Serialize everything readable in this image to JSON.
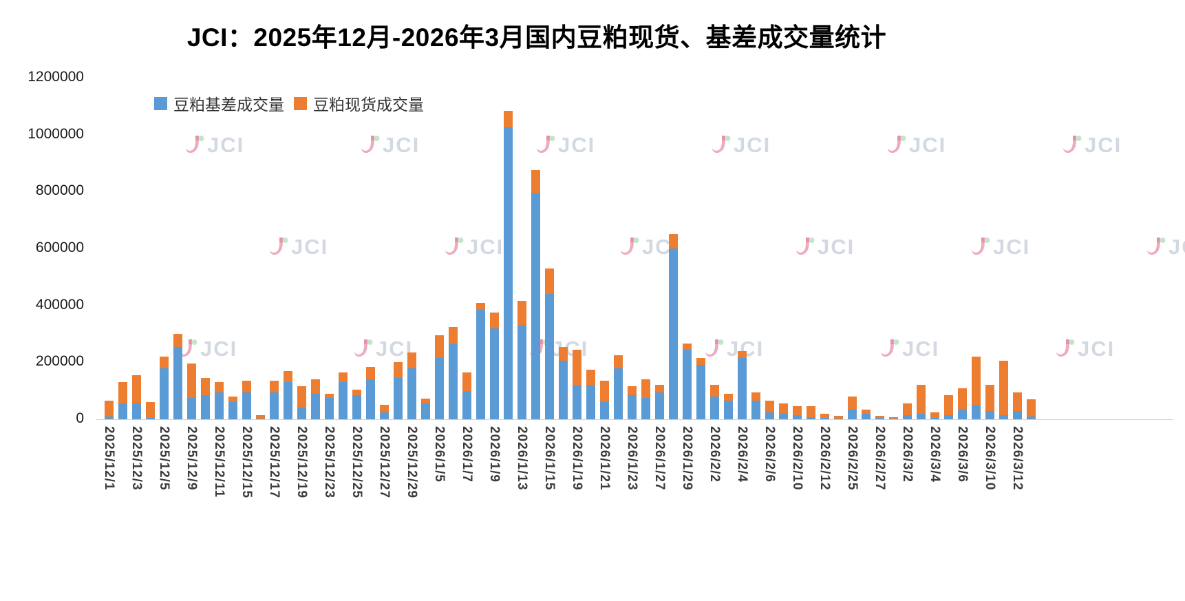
{
  "title": "JCI：2025年12月-2026年3月国内豆粕现货、基差成交量统计",
  "watermark_text": "JCI",
  "legend": {
    "items": [
      {
        "label": "豆粕基差成交量",
        "color": "#5B9BD5"
      },
      {
        "label": "豆粕现货成交量",
        "color": "#ED7D31"
      }
    ]
  },
  "y_axis": {
    "tick_labels": [
      "1200000",
      "1000000",
      "800000",
      "600000",
      "400000",
      "200000",
      "0"
    ],
    "max": 1200000
  },
  "chart_data": {
    "type": "bar",
    "stacked": true,
    "title": "JCI：2025年12月-2026年3月国内豆粕现货、基差成交量统计",
    "ylim": [
      0,
      1200000
    ],
    "grid": false,
    "legend_position": "top-left-inside",
    "x_label_rule": "one label per two bars, rotated vertical",
    "x_tick_labels": [
      "2025/12/1",
      "2025/12/3",
      "2025/12/5",
      "2025/12/9",
      "2025/12/11",
      "2025/12/15",
      "2025/12/17",
      "2025/12/19",
      "2025/12/23",
      "2025/12/25",
      "2025/12/27",
      "2025/12/29",
      "2026/1/5",
      "2026/1/7",
      "2026/1/9",
      "2026/1/13",
      "2026/1/15",
      "2026/1/19",
      "2026/1/21",
      "2026/1/23",
      "2026/1/27",
      "2026/1/29",
      "2026/2/2",
      "2026/2/4",
      "2026/2/6",
      "2026/2/10",
      "2026/2/12",
      "2026/2/25",
      "2026/2/27",
      "2026/3/2",
      "2026/3/4",
      "2026/3/6",
      "2026/3/10",
      "2026/3/12"
    ],
    "series": [
      {
        "name": "豆粕基差成交量",
        "color": "#5B9BD5",
        "values": [
          10000,
          55000,
          55000,
          5000,
          180000,
          255000,
          75000,
          85000,
          95000,
          60000,
          95000,
          3000,
          95000,
          130000,
          40000,
          90000,
          75000,
          130000,
          85000,
          140000,
          25000,
          145000,
          180000,
          55000,
          215000,
          265000,
          100000,
          385000,
          320000,
          1025000,
          330000,
          795000,
          440000,
          205000,
          120000,
          120000,
          60000,
          180000,
          85000,
          75000,
          95000,
          600000,
          245000,
          190000,
          80000,
          65000,
          215000,
          65000,
          25000,
          20000,
          15000,
          8000,
          5000,
          3000,
          35000,
          20000,
          5000,
          2000,
          15000,
          20000,
          5000,
          15000,
          35000,
          50000,
          30000,
          15000,
          30000,
          10000
        ]
      },
      {
        "name": "豆粕现货成交量",
        "color": "#ED7D31",
        "values": [
          55000,
          75000,
          100000,
          55000,
          40000,
          45000,
          120000,
          60000,
          35000,
          20000,
          40000,
          12000,
          40000,
          40000,
          75000,
          50000,
          15000,
          35000,
          20000,
          45000,
          25000,
          55000,
          55000,
          18000,
          80000,
          60000,
          65000,
          25000,
          55000,
          60000,
          85000,
          80000,
          90000,
          50000,
          125000,
          55000,
          75000,
          45000,
          30000,
          65000,
          25000,
          50000,
          20000,
          25000,
          40000,
          25000,
          25000,
          30000,
          40000,
          35000,
          30000,
          38000,
          15000,
          10000,
          45000,
          15000,
          8000,
          5000,
          40000,
          100000,
          20000,
          70000,
          75000,
          170000,
          90000,
          190000,
          65000,
          60000
        ]
      }
    ]
  }
}
